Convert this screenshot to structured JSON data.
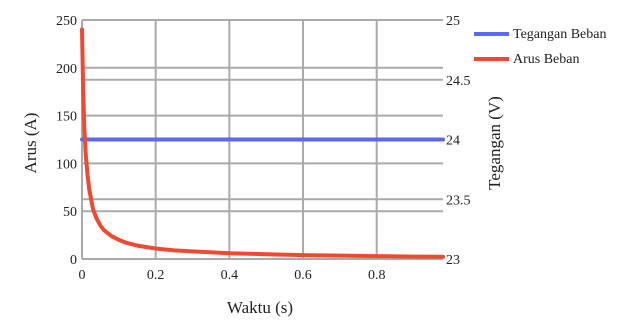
{
  "chart_data": {
    "type": "line",
    "xlabel": "Waktu (s)",
    "ylabel_left": "Arus (A)",
    "ylabel_right": "Tegangan (V)",
    "xlim": [
      0,
      0.98
    ],
    "ylim_left": [
      0,
      250
    ],
    "ylim_right": [
      23,
      25
    ],
    "x_ticks": [
      0,
      0.2,
      0.4,
      0.6,
      0.8
    ],
    "x_tick_labels": [
      "0",
      "0.2",
      "0.4",
      "0.6",
      "0.8"
    ],
    "y_left_ticks": [
      0,
      50,
      100,
      150,
      200,
      250
    ],
    "y_left_tick_labels": [
      "0",
      "50",
      "100",
      "150",
      "200",
      "250"
    ],
    "y_right_ticks": [
      23,
      23.5,
      24,
      24.5,
      25
    ],
    "y_right_tick_labels": [
      "23",
      "23.5",
      "24",
      "24.5",
      "25"
    ],
    "grid": true,
    "legend_position": "right",
    "series": [
      {
        "name": "Tegangan Beban",
        "axis": "right",
        "color": "#5b67f5",
        "x": [
          0,
          0.98
        ],
        "y": [
          24,
          24
        ]
      },
      {
        "name": "Arus Beban",
        "axis": "left",
        "color": "#ee4a31",
        "x": [
          0,
          0.003,
          0.006,
          0.01,
          0.015,
          0.02,
          0.03,
          0.04,
          0.05,
          0.06,
          0.08,
          0.1,
          0.12,
          0.15,
          0.2,
          0.25,
          0.3,
          0.4,
          0.5,
          0.6,
          0.7,
          0.8,
          0.9,
          0.98
        ],
        "y": [
          240,
          180,
          140,
          110,
          88,
          72,
          52,
          42,
          35,
          30,
          24,
          20,
          17,
          14,
          11,
          9,
          8,
          6,
          5,
          4,
          3.5,
          3,
          2.5,
          2.3
        ]
      }
    ]
  }
}
